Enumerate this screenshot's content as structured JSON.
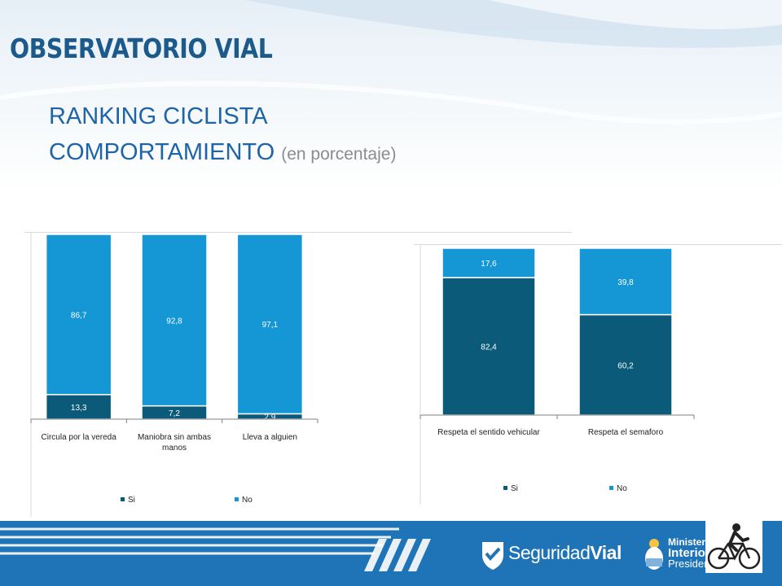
{
  "header": {
    "brand": "OBSERVATORIO VIAL",
    "title_line1": "RANKING CICLISTA",
    "title_line2": "COMPORTAMIENTO",
    "title_note": "(en porcentaje)"
  },
  "colors": {
    "si": "#0b5a79",
    "no": "#1596d5",
    "title": "#1e64a9",
    "brand": "#1c5a8c",
    "footer": "#1f73b7"
  },
  "chart_data": [
    {
      "type": "bar",
      "stacked": true,
      "categories": [
        "Circula por la vereda",
        "Maniobra sin ambas manos",
        "Lleva a alguien"
      ],
      "category_label_lines": [
        [
          "Circula por la vereda"
        ],
        [
          "Maniobra sin ambas",
          "manos"
        ],
        [
          "Lleva a alguien"
        ]
      ],
      "series": [
        {
          "name": "Si",
          "values": [
            13.3,
            7.2,
            2.9
          ],
          "labels": [
            "13,3",
            "7,2",
            "2,9"
          ]
        },
        {
          "name": "No",
          "values": [
            86.7,
            92.8,
            97.1
          ],
          "labels": [
            "86,7",
            "92,8",
            "97,1"
          ]
        }
      ],
      "ylim": [
        0,
        100
      ],
      "legend": "bottom",
      "grid": false
    },
    {
      "type": "bar",
      "stacked": true,
      "categories": [
        "Respeta el sentido vehicular",
        "Respeta el semaforo"
      ],
      "category_label_lines": [
        [
          "Respeta el sentido vehicular"
        ],
        [
          "Respeta el semaforo"
        ]
      ],
      "series": [
        {
          "name": "Si",
          "values": [
            82.4,
            60.2
          ],
          "labels": [
            "82,4",
            "60,2"
          ]
        },
        {
          "name": "No",
          "values": [
            17.6,
            39.8
          ],
          "labels": [
            "17,6",
            "39,8"
          ]
        }
      ],
      "ylim": [
        0,
        100
      ],
      "legend": "bottom",
      "grid": false
    }
  ],
  "footer": {
    "logo_strong": "Seguridad",
    "logo_light": "Vial",
    "ministry_line1": "Ministerio",
    "ministry_line2": "Interior y",
    "ministry_line3": "Presidencia",
    "bike_icon": "cyclist-icon"
  }
}
